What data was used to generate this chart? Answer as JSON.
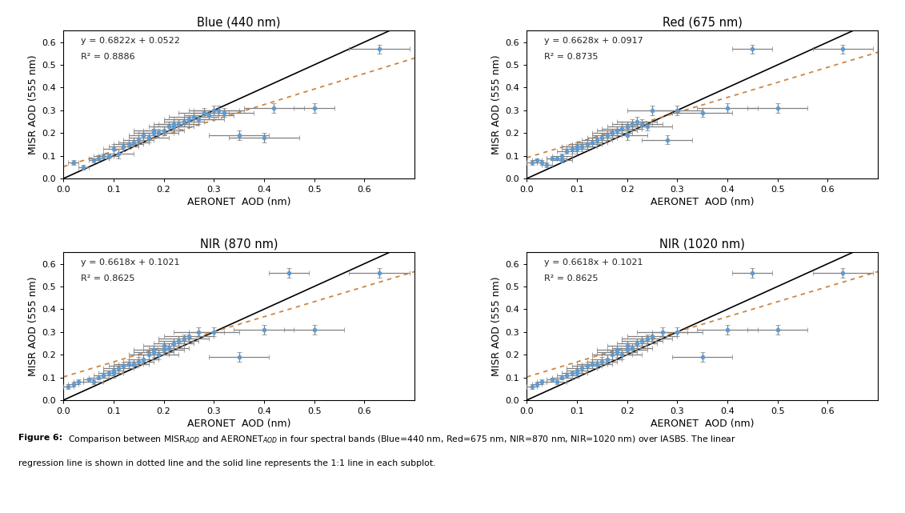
{
  "panels": [
    {
      "title": "Blue (440 nm)",
      "eq": "y = 0.6822x + 0.0522",
      "r2": "R² = 0.8886",
      "slope": 0.6822,
      "intercept": 0.0522,
      "x": [
        0.02,
        0.04,
        0.06,
        0.07,
        0.08,
        0.09,
        0.1,
        0.11,
        0.12,
        0.13,
        0.14,
        0.15,
        0.16,
        0.17,
        0.18,
        0.18,
        0.19,
        0.2,
        0.21,
        0.22,
        0.22,
        0.23,
        0.24,
        0.25,
        0.26,
        0.27,
        0.28,
        0.29,
        0.3,
        0.31,
        0.32,
        0.35,
        0.4,
        0.42,
        0.5,
        0.63
      ],
      "y": [
        0.07,
        0.05,
        0.08,
        0.09,
        0.1,
        0.1,
        0.13,
        0.11,
        0.14,
        0.15,
        0.16,
        0.17,
        0.19,
        0.18,
        0.2,
        0.21,
        0.2,
        0.21,
        0.23,
        0.23,
        0.24,
        0.24,
        0.25,
        0.26,
        0.27,
        0.26,
        0.29,
        0.28,
        0.3,
        0.3,
        0.29,
        0.19,
        0.18,
        0.31,
        0.31,
        0.57
      ],
      "xerr": [
        0.01,
        0.01,
        0.01,
        0.02,
        0.02,
        0.02,
        0.02,
        0.03,
        0.03,
        0.03,
        0.03,
        0.03,
        0.03,
        0.04,
        0.04,
        0.04,
        0.04,
        0.04,
        0.04,
        0.04,
        0.04,
        0.04,
        0.04,
        0.05,
        0.05,
        0.05,
        0.05,
        0.05,
        0.05,
        0.05,
        0.06,
        0.06,
        0.07,
        0.06,
        0.04,
        0.06
      ],
      "yerr": [
        0.01,
        0.01,
        0.01,
        0.01,
        0.01,
        0.01,
        0.02,
        0.02,
        0.02,
        0.02,
        0.02,
        0.02,
        0.02,
        0.02,
        0.02,
        0.02,
        0.02,
        0.02,
        0.02,
        0.02,
        0.02,
        0.02,
        0.02,
        0.02,
        0.02,
        0.02,
        0.02,
        0.02,
        0.02,
        0.02,
        0.02,
        0.02,
        0.02,
        0.02,
        0.02,
        0.02
      ]
    },
    {
      "title": "Red (675 nm)",
      "eq": "y = 0.6628x + 0.0917",
      "r2": "R² = 0.8735",
      "slope": 0.6628,
      "intercept": 0.0917,
      "x": [
        0.01,
        0.02,
        0.03,
        0.04,
        0.05,
        0.06,
        0.07,
        0.07,
        0.08,
        0.09,
        0.1,
        0.1,
        0.11,
        0.12,
        0.13,
        0.14,
        0.15,
        0.16,
        0.17,
        0.18,
        0.19,
        0.2,
        0.2,
        0.21,
        0.22,
        0.23,
        0.24,
        0.25,
        0.28,
        0.3,
        0.35,
        0.4,
        0.45,
        0.5,
        0.63
      ],
      "y": [
        0.07,
        0.08,
        0.07,
        0.06,
        0.09,
        0.09,
        0.08,
        0.1,
        0.12,
        0.13,
        0.13,
        0.14,
        0.14,
        0.15,
        0.16,
        0.17,
        0.18,
        0.19,
        0.2,
        0.21,
        0.22,
        0.19,
        0.23,
        0.24,
        0.25,
        0.24,
        0.23,
        0.3,
        0.17,
        0.3,
        0.29,
        0.31,
        0.57,
        0.31,
        0.57
      ],
      "xerr": [
        0.01,
        0.01,
        0.01,
        0.01,
        0.01,
        0.02,
        0.02,
        0.02,
        0.02,
        0.02,
        0.02,
        0.03,
        0.03,
        0.03,
        0.03,
        0.03,
        0.03,
        0.03,
        0.04,
        0.04,
        0.04,
        0.04,
        0.04,
        0.04,
        0.04,
        0.04,
        0.05,
        0.05,
        0.05,
        0.05,
        0.06,
        0.06,
        0.04,
        0.06,
        0.06
      ],
      "yerr": [
        0.01,
        0.01,
        0.01,
        0.01,
        0.01,
        0.01,
        0.01,
        0.01,
        0.01,
        0.02,
        0.02,
        0.02,
        0.02,
        0.02,
        0.02,
        0.02,
        0.02,
        0.02,
        0.02,
        0.02,
        0.02,
        0.02,
        0.02,
        0.02,
        0.02,
        0.02,
        0.02,
        0.02,
        0.02,
        0.02,
        0.02,
        0.02,
        0.02,
        0.02,
        0.02
      ]
    },
    {
      "title": "NIR (870 nm)",
      "eq": "y = 0.6618x + 0.1021",
      "r2": "R² = 0.8625",
      "slope": 0.6618,
      "intercept": 0.1021,
      "x": [
        0.01,
        0.02,
        0.03,
        0.05,
        0.06,
        0.07,
        0.08,
        0.09,
        0.1,
        0.1,
        0.11,
        0.12,
        0.13,
        0.14,
        0.15,
        0.16,
        0.17,
        0.18,
        0.18,
        0.19,
        0.2,
        0.2,
        0.21,
        0.22,
        0.23,
        0.24,
        0.25,
        0.27,
        0.3,
        0.35,
        0.4,
        0.45,
        0.5,
        0.63
      ],
      "y": [
        0.06,
        0.07,
        0.08,
        0.09,
        0.08,
        0.1,
        0.11,
        0.12,
        0.12,
        0.13,
        0.14,
        0.15,
        0.16,
        0.16,
        0.17,
        0.18,
        0.2,
        0.21,
        0.22,
        0.2,
        0.22,
        0.24,
        0.23,
        0.25,
        0.26,
        0.27,
        0.28,
        0.3,
        0.3,
        0.19,
        0.31,
        0.56,
        0.31,
        0.56
      ],
      "xerr": [
        0.01,
        0.01,
        0.01,
        0.01,
        0.02,
        0.02,
        0.02,
        0.02,
        0.02,
        0.02,
        0.03,
        0.03,
        0.03,
        0.03,
        0.03,
        0.03,
        0.04,
        0.04,
        0.04,
        0.04,
        0.04,
        0.04,
        0.04,
        0.04,
        0.04,
        0.05,
        0.05,
        0.05,
        0.05,
        0.06,
        0.06,
        0.04,
        0.06,
        0.06
      ],
      "yerr": [
        0.01,
        0.01,
        0.01,
        0.01,
        0.01,
        0.01,
        0.01,
        0.01,
        0.02,
        0.02,
        0.02,
        0.02,
        0.02,
        0.02,
        0.02,
        0.02,
        0.02,
        0.02,
        0.02,
        0.02,
        0.02,
        0.02,
        0.02,
        0.02,
        0.02,
        0.02,
        0.02,
        0.02,
        0.02,
        0.02,
        0.02,
        0.02,
        0.02,
        0.02
      ]
    },
    {
      "title": "NIR (1020 nm)",
      "eq": "y = 0.6618x + 0.1021",
      "r2": "R² = 0.8625",
      "slope": 0.6618,
      "intercept": 0.1021,
      "x": [
        0.01,
        0.02,
        0.03,
        0.05,
        0.06,
        0.07,
        0.08,
        0.09,
        0.1,
        0.1,
        0.11,
        0.12,
        0.13,
        0.14,
        0.15,
        0.16,
        0.17,
        0.18,
        0.18,
        0.19,
        0.2,
        0.2,
        0.21,
        0.22,
        0.23,
        0.24,
        0.25,
        0.27,
        0.3,
        0.35,
        0.4,
        0.45,
        0.5,
        0.63
      ],
      "y": [
        0.06,
        0.07,
        0.08,
        0.09,
        0.08,
        0.1,
        0.11,
        0.12,
        0.12,
        0.13,
        0.14,
        0.15,
        0.16,
        0.16,
        0.17,
        0.18,
        0.2,
        0.21,
        0.22,
        0.2,
        0.22,
        0.24,
        0.23,
        0.25,
        0.26,
        0.27,
        0.28,
        0.3,
        0.3,
        0.19,
        0.31,
        0.56,
        0.31,
        0.56
      ],
      "xerr": [
        0.01,
        0.01,
        0.01,
        0.01,
        0.02,
        0.02,
        0.02,
        0.02,
        0.02,
        0.02,
        0.03,
        0.03,
        0.03,
        0.03,
        0.03,
        0.03,
        0.04,
        0.04,
        0.04,
        0.04,
        0.04,
        0.04,
        0.04,
        0.04,
        0.04,
        0.05,
        0.05,
        0.05,
        0.05,
        0.06,
        0.06,
        0.04,
        0.06,
        0.06
      ],
      "yerr": [
        0.01,
        0.01,
        0.01,
        0.01,
        0.01,
        0.01,
        0.01,
        0.01,
        0.02,
        0.02,
        0.02,
        0.02,
        0.02,
        0.02,
        0.02,
        0.02,
        0.02,
        0.02,
        0.02,
        0.02,
        0.02,
        0.02,
        0.02,
        0.02,
        0.02,
        0.02,
        0.02,
        0.02,
        0.02,
        0.02,
        0.02,
        0.02,
        0.02,
        0.02
      ]
    }
  ],
  "xlabel": "AERONET  AOD (nm)",
  "ylabel": "MISR AOD (555 nm)",
  "xlim": [
    0,
    0.7
  ],
  "ylim": [
    0,
    0.65
  ],
  "xticks": [
    0,
    0.1,
    0.2,
    0.3,
    0.4,
    0.5,
    0.6
  ],
  "yticks": [
    0,
    0.1,
    0.2,
    0.3,
    0.4,
    0.5,
    0.6
  ],
  "dot_color": "#5b9bd5",
  "err_color": "#808080",
  "line11_color": "#000000",
  "regression_color": "#cd853f",
  "fig_width": 11.31,
  "fig_height": 6.41,
  "caption_bold": "Figure 6:",
  "caption_normal": " Comparison between MISR",
  "caption_line1": "Figure 6: Comparison between MISR$_{AOD}$ and AERONET$_{AOD}$ in four spectral bands (Blue=440 nm, Red=675 nm, NIR=870 nm, NIR=1020 nm) over IASBS. The linear",
  "caption_line2": "regression line is shown in dotted line and the solid line represents the 1:1 line in each subplot."
}
